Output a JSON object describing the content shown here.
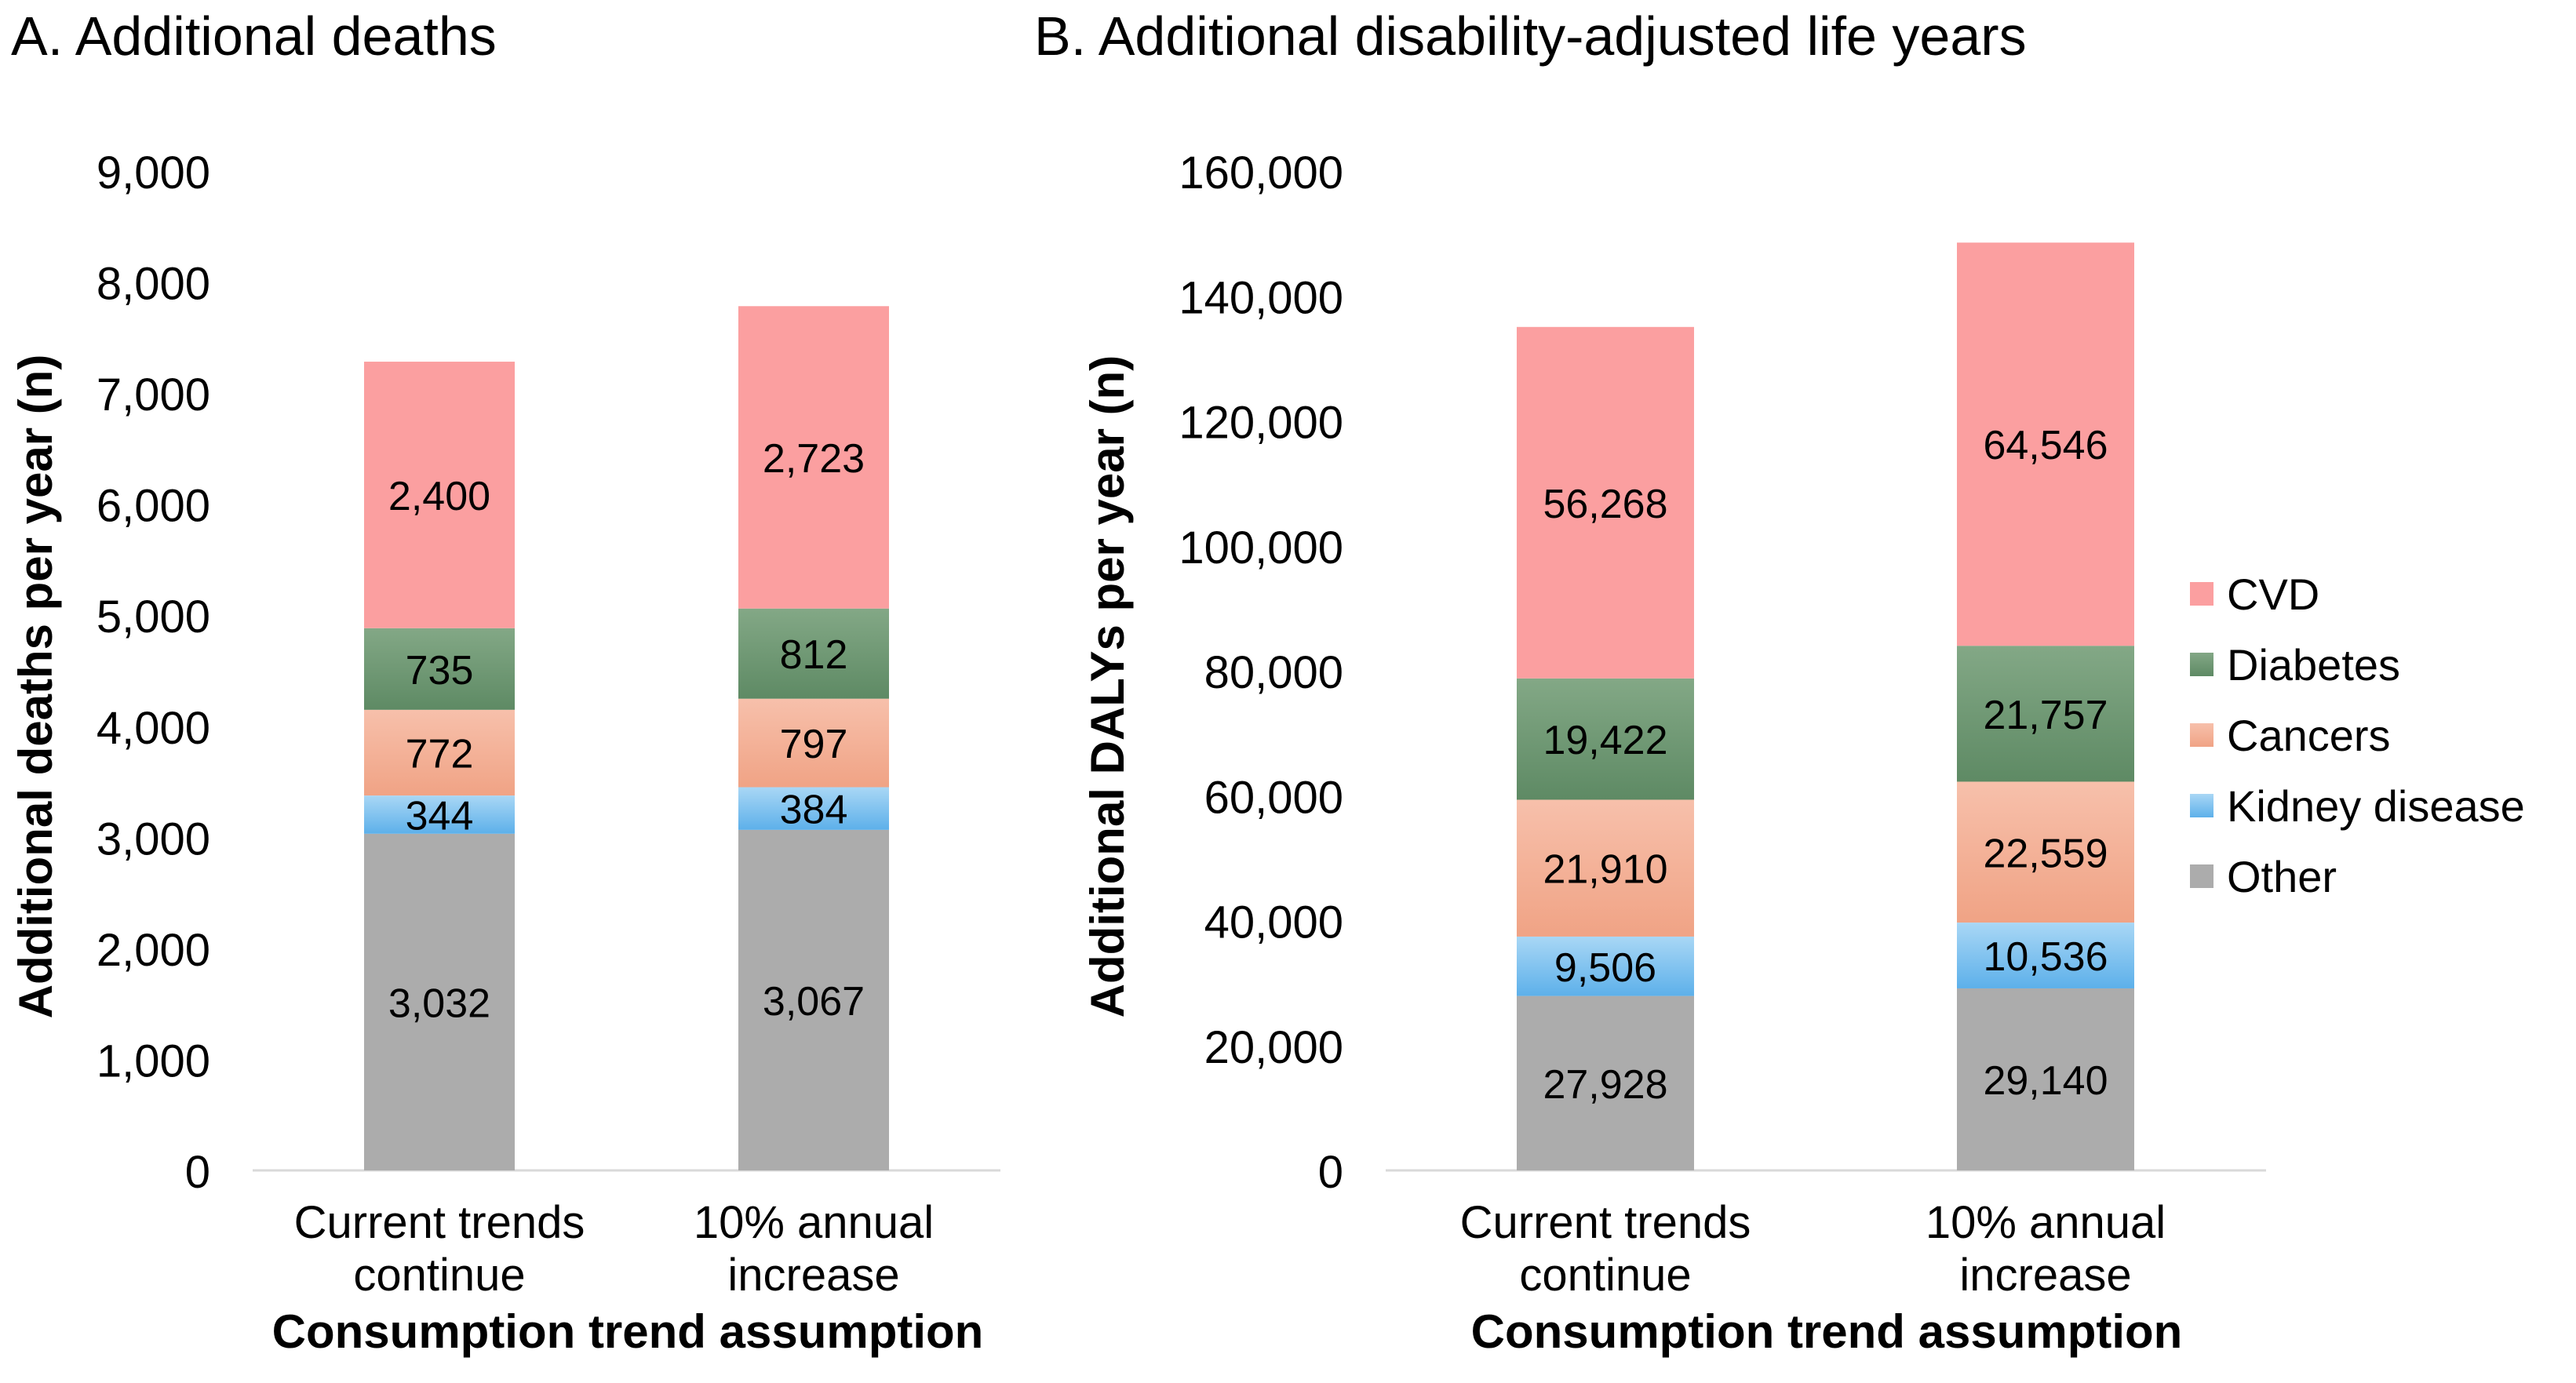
{
  "chart_data": [
    {
      "type": "bar",
      "stacked": true,
      "title": "A. Additional deaths",
      "xlabel": "Consumption trend assumption",
      "ylabel": "Additional deaths per year (n)",
      "ylim": [
        0,
        9000
      ],
      "yticks": [
        0,
        1000,
        2000,
        3000,
        4000,
        5000,
        6000,
        7000,
        8000,
        9000
      ],
      "ytick_labels": [
        "0",
        "1,000",
        "2,000",
        "3,000",
        "4,000",
        "5,000",
        "6,000",
        "7,000",
        "8,000",
        "9,000"
      ],
      "categories": [
        [
          "Current trends",
          "continue"
        ],
        [
          "10% annual",
          "increase"
        ]
      ],
      "series": [
        {
          "name": "Other",
          "values": [
            3032,
            3067
          ],
          "labels": [
            "3,032",
            "3,067"
          ]
        },
        {
          "name": "Kidney disease",
          "values": [
            344,
            384
          ],
          "labels": [
            "344",
            "384"
          ]
        },
        {
          "name": "Cancers",
          "values": [
            772,
            797
          ],
          "labels": [
            "772",
            "797"
          ]
        },
        {
          "name": "Diabetes",
          "values": [
            735,
            812
          ],
          "labels": [
            "735",
            "812"
          ]
        },
        {
          "name": "CVD",
          "values": [
            2400,
            2723
          ],
          "labels": [
            "2,400",
            "2,723"
          ]
        }
      ]
    },
    {
      "type": "bar",
      "stacked": true,
      "title": "B. Additional disability-adjusted life years",
      "xlabel": "Consumption trend assumption",
      "ylabel": "Additional DALYs per year (n)",
      "ylim": [
        0,
        160000
      ],
      "yticks": [
        0,
        20000,
        40000,
        60000,
        80000,
        100000,
        120000,
        140000,
        160000
      ],
      "ytick_labels": [
        "0",
        "20,000",
        "40,000",
        "60,000",
        "80,000",
        "100,000",
        "120,000",
        "140,000",
        "160,000"
      ],
      "categories": [
        [
          "Current trends",
          "continue"
        ],
        [
          "10% annual",
          "increase"
        ]
      ],
      "series": [
        {
          "name": "Other",
          "values": [
            27928,
            29140
          ],
          "labels": [
            "27,928",
            "29,140"
          ]
        },
        {
          "name": "Kidney disease",
          "values": [
            9506,
            10536
          ],
          "labels": [
            "9,506",
            "10,536"
          ]
        },
        {
          "name": "Cancers",
          "values": [
            21910,
            22559
          ],
          "labels": [
            "21,910",
            "22,559"
          ]
        },
        {
          "name": "Diabetes",
          "values": [
            19422,
            21757
          ],
          "labels": [
            "19,422",
            "21,757"
          ]
        },
        {
          "name": "CVD",
          "values": [
            56268,
            64546
          ],
          "labels": [
            "56,268",
            "64,546"
          ]
        }
      ]
    }
  ],
  "legend": {
    "position": "right",
    "items": [
      "CVD",
      "Diabetes",
      "Cancers",
      "Kidney disease",
      "Other"
    ]
  },
  "colors": {
    "CVD": [
      "#fb9fa0",
      "#fb9fa0"
    ],
    "Diabetes": [
      "#83a886",
      "#5e8a64"
    ],
    "Cancers": [
      "#f7c0ab",
      "#f0a385"
    ],
    "Kidney disease": [
      "#a9d7f5",
      "#5db0ea"
    ],
    "Other": [
      "#acacac",
      "#acacac"
    ],
    "axis": "#d9d9d9",
    "text": "#000000"
  }
}
